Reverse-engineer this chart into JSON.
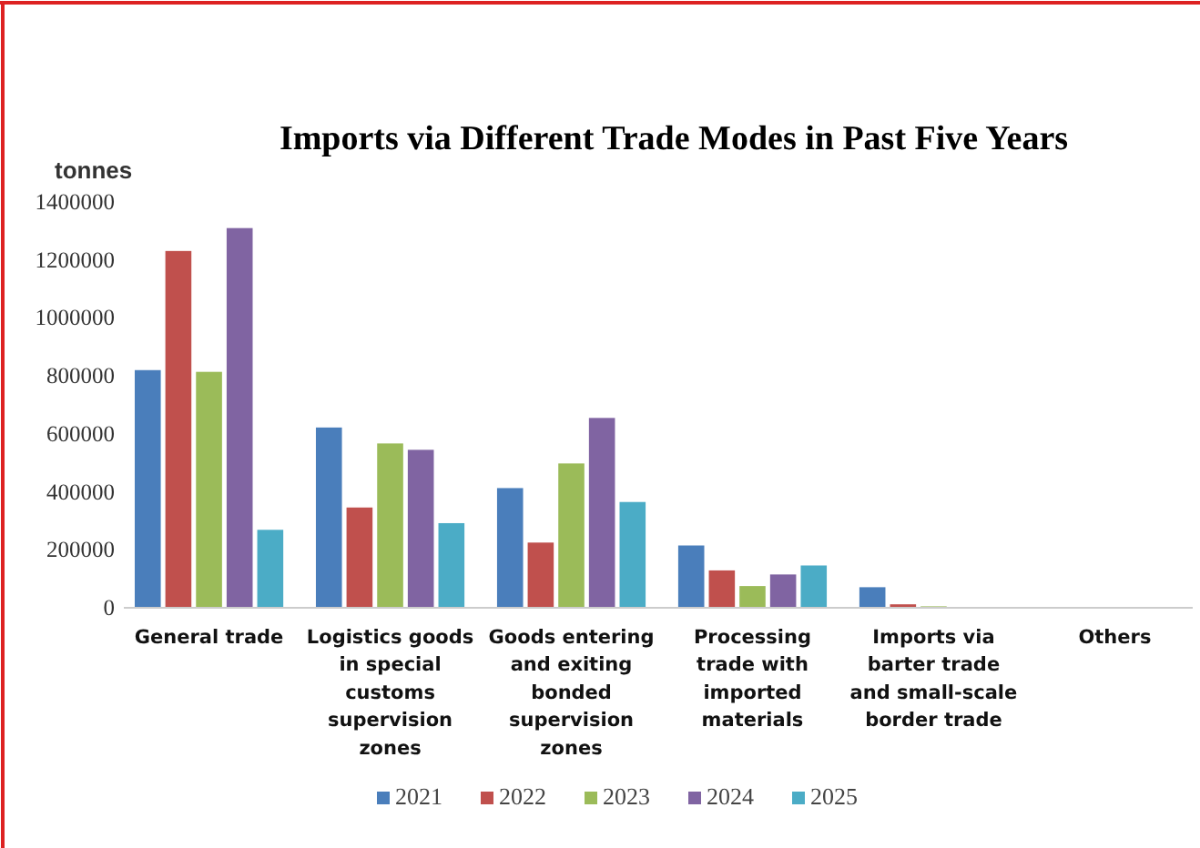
{
  "chart_data": {
    "type": "bar",
    "title": "Imports via Different Trade Modes in Past Five Years",
    "ylabel": "tonnes",
    "categories": [
      "General trade",
      "Logistics goods in special customs supervision zones",
      "Goods entering and exiting bonded supervision zones",
      "Processing trade with imported materials",
      "Imports via barter trade and small-scale border trade",
      "Others"
    ],
    "series": [
      {
        "name": "2021",
        "color": "#4a7ebb",
        "values": [
          820000,
          622000,
          413000,
          215000,
          71000,
          0
        ]
      },
      {
        "name": "2022",
        "color": "#c0504d",
        "values": [
          1231000,
          346000,
          225000,
          129000,
          12000,
          0
        ]
      },
      {
        "name": "2023",
        "color": "#9bbb59",
        "values": [
          814000,
          567000,
          498000,
          75000,
          5000,
          0
        ]
      },
      {
        "name": "2024",
        "color": "#8064a2",
        "values": [
          1310000,
          545000,
          655000,
          115000,
          null,
          0
        ]
      },
      {
        "name": "2025",
        "color": "#4bacc6",
        "values": [
          269000,
          292000,
          365000,
          146000,
          null,
          0
        ]
      }
    ],
    "ylim": [
      0,
      1400000
    ],
    "yticks": [
      0,
      200000,
      400000,
      600000,
      800000,
      1000000,
      1200000,
      1400000
    ],
    "grid": false,
    "legend": "bottom"
  }
}
